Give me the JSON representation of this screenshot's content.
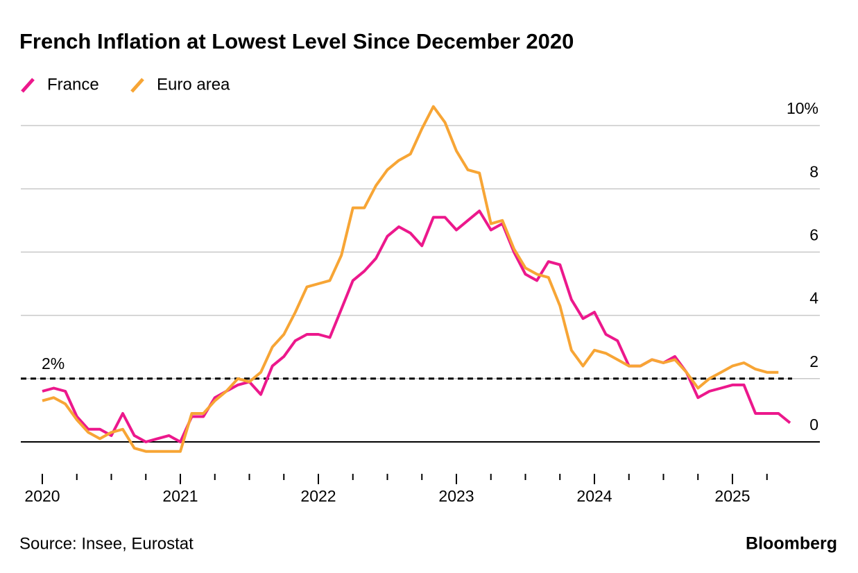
{
  "chart_data": {
    "type": "line",
    "title": "French Inflation at Lowest Level Since December 2020",
    "source": "Source: Insee, Eurostat",
    "credit": "Bloomberg",
    "x": [
      2020,
      2020.083,
      2020.167,
      2020.25,
      2020.333,
      2020.417,
      2020.5,
      2020.583,
      2020.667,
      2020.75,
      2020.833,
      2020.917,
      2021,
      2021.083,
      2021.167,
      2021.25,
      2021.333,
      2021.417,
      2021.5,
      2021.583,
      2021.667,
      2021.75,
      2021.833,
      2021.917,
      2022,
      2022.083,
      2022.167,
      2022.25,
      2022.333,
      2022.417,
      2022.5,
      2022.583,
      2022.667,
      2022.75,
      2022.833,
      2022.917,
      2023,
      2023.083,
      2023.167,
      2023.25,
      2023.333,
      2023.417,
      2023.5,
      2023.583,
      2023.667,
      2023.75,
      2023.833,
      2023.917,
      2024,
      2024.083,
      2024.167,
      2024.25,
      2024.333,
      2024.417,
      2024.5,
      2024.583,
      2024.667,
      2024.75,
      2024.833,
      2024.917,
      2025,
      2025.083,
      2025.167,
      2025.25,
      2025.333,
      2025.417
    ],
    "series": [
      {
        "name": "France",
        "color": "#ec188c",
        "values": [
          1.6,
          1.7,
          1.6,
          0.8,
          0.4,
          0.4,
          0.2,
          0.9,
          0.2,
          0.0,
          0.1,
          0.2,
          0.0,
          0.8,
          0.8,
          1.4,
          1.6,
          1.8,
          1.9,
          1.5,
          2.4,
          2.7,
          3.2,
          3.4,
          3.4,
          3.3,
          4.2,
          5.1,
          5.4,
          5.8,
          6.5,
          6.8,
          6.6,
          6.2,
          7.1,
          7.1,
          6.7,
          7.0,
          7.3,
          6.7,
          6.9,
          6.0,
          5.3,
          5.1,
          5.7,
          5.6,
          4.5,
          3.9,
          4.1,
          3.4,
          3.2,
          2.4,
          2.4,
          2.6,
          2.5,
          2.7,
          2.2,
          1.4,
          1.6,
          1.7,
          1.8,
          1.8,
          0.9,
          0.9,
          0.9,
          0.6
        ]
      },
      {
        "name": "Euro area",
        "color": "#f7a535",
        "values": [
          1.3,
          1.4,
          1.2,
          0.7,
          0.3,
          0.1,
          0.3,
          0.4,
          -0.2,
          -0.3,
          -0.3,
          -0.3,
          -0.3,
          0.9,
          0.9,
          1.3,
          1.6,
          2.0,
          1.9,
          2.2,
          3.0,
          3.4,
          4.1,
          4.9,
          5.0,
          5.1,
          5.9,
          7.4,
          7.4,
          8.1,
          8.6,
          8.9,
          9.1,
          9.9,
          10.6,
          10.1,
          9.2,
          8.6,
          8.5,
          6.9,
          7.0,
          6.1,
          5.5,
          5.3,
          5.2,
          4.3,
          2.9,
          2.4,
          2.9,
          2.8,
          2.6,
          2.4,
          2.4,
          2.6,
          2.5,
          2.6,
          2.2,
          1.7,
          2.0,
          2.2,
          2.4,
          2.5,
          2.3,
          2.2,
          2.2,
          null
        ]
      }
    ],
    "xlim": [
      2020,
      2025.5
    ],
    "xticks": [
      2020,
      2021,
      2022,
      2023,
      2024,
      2025
    ],
    "xminorticks": [
      2020.25,
      2020.5,
      2020.75,
      2021.25,
      2021.5,
      2021.75,
      2022.25,
      2022.5,
      2022.75,
      2023.25,
      2023.5,
      2023.75,
      2024.25,
      2024.5,
      2024.75,
      2025.25
    ],
    "ylim": [
      -1,
      10
    ],
    "yticks": [
      0,
      2,
      4,
      6,
      8,
      {
        "value": 10,
        "label": "10%"
      }
    ],
    "reference_line": {
      "value": 2,
      "label": "2%"
    },
    "grid": true,
    "legend": "top-left"
  }
}
